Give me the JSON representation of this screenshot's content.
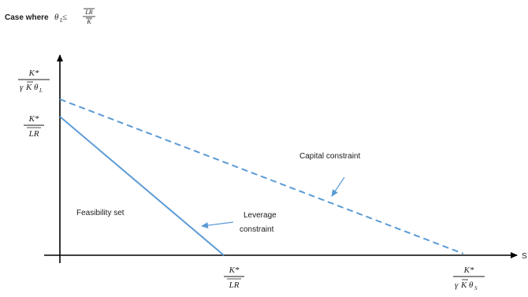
{
  "title": {
    "prefix": "Case where ",
    "theta": "θ",
    "sub_L": "L",
    "leq": " ≤ ",
    "frac_num": "LR",
    "frac_den": "K"
  },
  "y_axis_labels": {
    "top": {
      "num": "K*",
      "den_gamma": "γ",
      "den_kbar": "K",
      "den_theta": "θ",
      "den_sub": "L"
    },
    "intercept": {
      "num": "K*",
      "den": "LR"
    }
  },
  "x_axis_labels": {
    "intercept": {
      "num": "K*",
      "den": "LR"
    },
    "right": {
      "num": "K*",
      "den_gamma": "γ",
      "den_kbar": "K",
      "den_theta": "θ",
      "den_sub": "S"
    },
    "axis_letter": "S"
  },
  "regions": {
    "feasibility": "Feasibility set"
  },
  "lines": {
    "capital": {
      "label": "Capital constraint",
      "style": "dashed",
      "color": "#5b9bd5"
    },
    "leverage": {
      "label_line1": "Leverage",
      "label_line2": "constraint",
      "style": "solid",
      "color": "#5b9bd5"
    }
  },
  "colors": {
    "axis": "#000000",
    "line": "#5b9bd5",
    "arrow": "#5b9bd5"
  }
}
